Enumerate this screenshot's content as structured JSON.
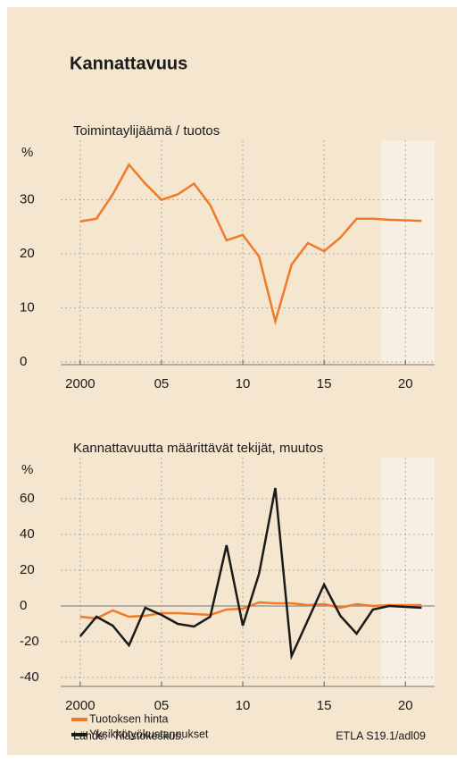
{
  "title": "Kannattavuus",
  "source": "Lähde:  Tilastokeskus.",
  "credit": "ETLA S19.1/adl09",
  "chart_data": [
    {
      "type": "line",
      "subtitle": "Toimintaylijäämä / tuotos",
      "ylabel": "%",
      "x": [
        2000,
        2001,
        2002,
        2003,
        2004,
        2005,
        2006,
        2007,
        2008,
        2009,
        2010,
        2011,
        2012,
        2013,
        2014,
        2015,
        2016,
        2017,
        2018,
        2019,
        2020,
        2021
      ],
      "values": [
        26,
        26.5,
        31,
        36.5,
        33,
        30,
        31,
        33,
        29,
        22.5,
        23.5,
        19.5,
        7.5,
        18,
        22,
        20.5,
        23,
        26.5,
        26.5,
        26.3,
        26.2,
        26.1
      ],
      "color": "#f07a2a",
      "xlim": [
        1998.8,
        2021.8
      ],
      "xticks": [
        2000,
        {
          "value": 2005,
          "label": "05"
        },
        {
          "value": 2010,
          "label": "10"
        },
        {
          "value": 2015,
          "label": "15"
        },
        {
          "value": 2020,
          "label": "20"
        }
      ],
      "ylim": [
        -0.5,
        41
      ],
      "yticks": [
        0,
        10,
        20,
        30
      ],
      "shade_from": 2018.5,
      "grid": true
    },
    {
      "type": "line",
      "subtitle": "Kannattavuutta määrittävät tekijät, muutos",
      "ylabel": "%",
      "x": [
        2000,
        2001,
        2002,
        2003,
        2004,
        2005,
        2006,
        2007,
        2008,
        2009,
        2010,
        2011,
        2012,
        2013,
        2014,
        2015,
        2016,
        2017,
        2018,
        2019,
        2020,
        2021
      ],
      "series": [
        {
          "name": "Tuotoksen hinta",
          "color": "#f07a2a",
          "values": [
            -6,
            -7,
            -2.5,
            -6,
            -5.5,
            -4,
            -4,
            -4.5,
            -5,
            -2,
            -1.5,
            2,
            1.5,
            1.5,
            0.5,
            1,
            -1,
            1,
            0,
            0.5,
            0.5,
            0.5
          ]
        },
        {
          "name": "Yksikkötyökustannukset",
          "color": "#1a1a1a",
          "values": [
            -17,
            -6,
            -11,
            -22,
            -1,
            -5,
            -10,
            -11.5,
            -6,
            34,
            -11,
            18,
            66,
            -28,
            -8,
            12,
            -5.5,
            -15.5,
            -2,
            0,
            -0.5,
            -1
          ]
        }
      ],
      "xlim": [
        1998.8,
        2021.8
      ],
      "xticks": [
        2000,
        {
          "value": 2005,
          "label": "05"
        },
        {
          "value": 2010,
          "label": "10"
        },
        {
          "value": 2015,
          "label": "15"
        },
        {
          "value": 2020,
          "label": "20"
        }
      ],
      "ylim": [
        -45,
        83
      ],
      "yticks": [
        -40,
        -20,
        0,
        20,
        40,
        60
      ],
      "shade_from": 2018.5,
      "grid": true
    }
  ]
}
